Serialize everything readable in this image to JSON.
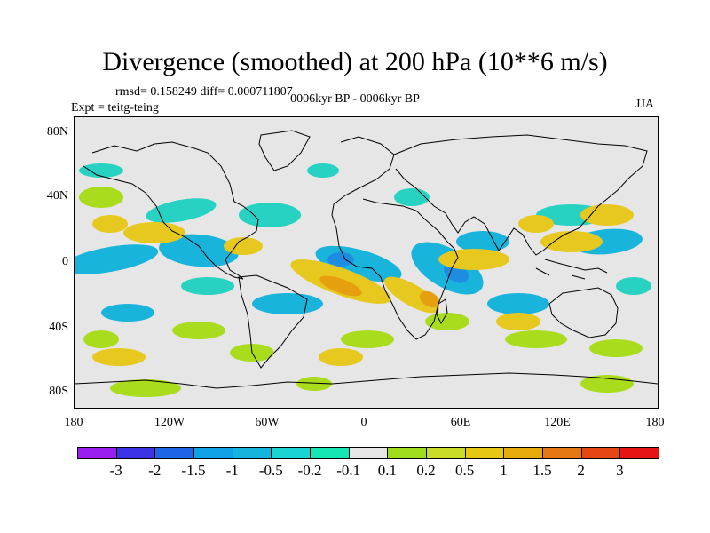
{
  "title": "Divergence (smoothed) at 200 hPa (10**6 m/s)",
  "stats": "rmsd= 0.158249 diff= 0.000711807",
  "experiment": "Expt = teitg-teing",
  "period": "0006kyr BP - 0006kyr BP",
  "season": "JJA",
  "lat_labels": [
    "80N",
    "40N",
    "0",
    "40S",
    "80S"
  ],
  "lon_labels": [
    "180",
    "120W",
    "60W",
    "0",
    "60E",
    "120E",
    "180"
  ],
  "colorbar": {
    "colors": [
      "#9a1ef0",
      "#3c33e6",
      "#1e64e6",
      "#0fa0e6",
      "#14b4dc",
      "#19d2d2",
      "#14e6b4",
      "#e6e6e6",
      "#a0dc1e",
      "#c8dc28",
      "#e6c814",
      "#e6aa0a",
      "#e67814",
      "#e64614",
      "#e61414"
    ],
    "labels": [
      "-3",
      "-2",
      "-1.5",
      "-1",
      "-0.5",
      "-0.2",
      "-0.1",
      "0.1",
      "0.2",
      "0.5",
      "1",
      "1.5",
      "2",
      "3"
    ]
  },
  "field_colors": {
    "neg_light": "#28d2c3",
    "neg": "#19b4dc",
    "neg_strong": "#1e8ce1",
    "pos_light": "#aadc1e",
    "pos": "#e6c81e",
    "pos_strong": "#e6a00f"
  }
}
